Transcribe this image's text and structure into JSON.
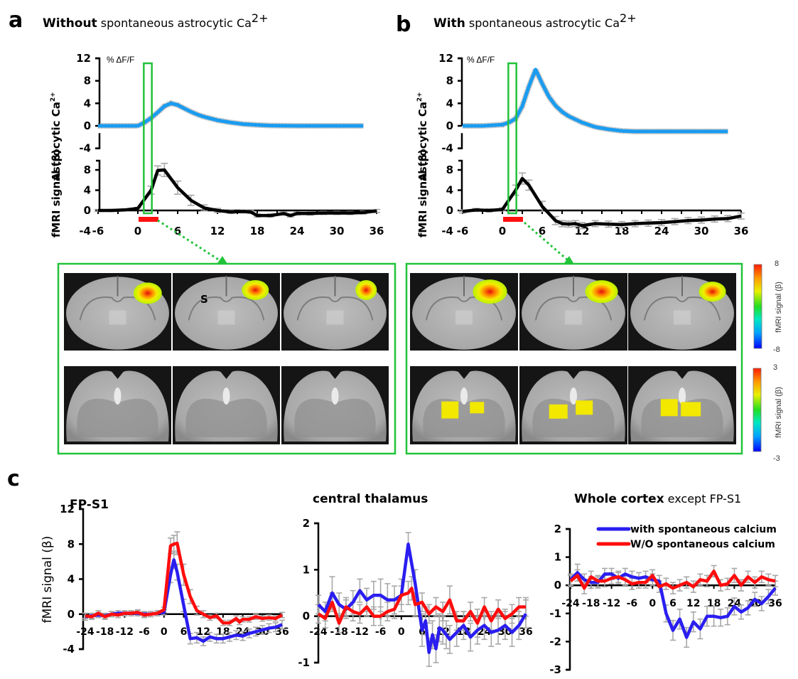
{
  "panels": {
    "a": {
      "letter": "a",
      "title_bold": "Without",
      "title_rest": " spontaneous astrocytic Ca",
      "title_sup": "2+",
      "unit_label": "% ΔF/F",
      "ca_ylabel": "Astrocytic Ca",
      "ca_ylabel_sup": "2+",
      "fmri_ylabel": "fMRI signal (β)"
    },
    "b": {
      "letter": "b",
      "title_bold": "With",
      "title_rest": " spontaneous astrocytic Ca",
      "title_sup": "2+",
      "unit_label": "% ΔF/F",
      "ca_ylabel": "Astrocytic Ca",
      "ca_ylabel_sup": "2+",
      "fmri_ylabel": "fMRI signal (β)"
    },
    "c": {
      "letter": "c",
      "fp_title": "FP-S1",
      "thal_title": "central thalamus",
      "ctx_title_bold": "Whole cortex",
      "ctx_title_rest": " except FP-S1",
      "ylabel": "fMRI signal (β)"
    }
  },
  "brain_maps": {
    "s_label": "S",
    "colorbar_top": {
      "label": "fMRI signal (β)",
      "max": "8",
      "min": "-8"
    },
    "colorbar_bottom": {
      "label": "fMRI signal (β)",
      "max": "3",
      "min": "-3"
    }
  },
  "colors": {
    "calcium": "#1a9cf0",
    "fmri": "#000000",
    "with_calcium": "#2a1ef0",
    "without_calcium": "#ff0d0d",
    "highlight_box": "#22c33a",
    "stimulus_bar": "#ff1010",
    "error_bar": "#a8a8a8"
  },
  "chart_data": [
    {
      "id": "a_calcium",
      "type": "line",
      "title": "Without spontaneous astrocytic Ca2+",
      "ylabel": "Astrocytic Ca2+ (% ΔF/F)",
      "ylim": [
        -4,
        12
      ],
      "yticks": [
        "12",
        "8",
        "4",
        "0",
        "-4"
      ],
      "series": [
        {
          "name": "Astrocytic Ca2+",
          "x": [
            -6,
            -3,
            0,
            1,
            2,
            3,
            4,
            5,
            6,
            7,
            8,
            9,
            10,
            12,
            14,
            16,
            18,
            20,
            24,
            28,
            32,
            34
          ],
          "y": [
            0,
            0,
            0,
            0.6,
            1.4,
            2.4,
            3.5,
            4.0,
            3.7,
            3.1,
            2.5,
            2.0,
            1.6,
            1.0,
            0.6,
            0.3,
            0.15,
            0.05,
            0,
            0,
            0,
            0
          ]
        }
      ]
    },
    {
      "id": "a_fmri",
      "type": "line",
      "xlabel": "",
      "ylabel": "fMRI signal (β)",
      "ylim": [
        -4,
        10
      ],
      "xlim": [
        -6,
        36
      ],
      "xticks": [
        "-6",
        "0",
        "6",
        "12",
        "18",
        "24",
        "30",
        "36"
      ],
      "yticks": [
        "8",
        "4",
        "0",
        "-4"
      ],
      "stimulus": [
        0,
        3
      ],
      "highlight_window": [
        1,
        2
      ],
      "series": [
        {
          "name": "fMRI",
          "x": [
            -6,
            -4,
            -2,
            0,
            2,
            3,
            4,
            6,
            8,
            10,
            12,
            14,
            16,
            17,
            18,
            20,
            22,
            23,
            24,
            26,
            28,
            30,
            32,
            34,
            36
          ],
          "y": [
            0,
            0,
            0.1,
            0.4,
            4.0,
            7.9,
            8.0,
            4.5,
            2.0,
            0.5,
            0,
            -0.3,
            -0.2,
            -0.3,
            -1.0,
            -1.0,
            -0.6,
            -1.0,
            -0.6,
            -0.6,
            -0.5,
            -0.5,
            -0.5,
            -0.4,
            -0.1
          ],
          "err": [
            0.2,
            0.2,
            0.2,
            0.2,
            0.8,
            0.9,
            1.3,
            1.3,
            1.0,
            0.6,
            0.4,
            0.3,
            0.3,
            0.3,
            0.3,
            0.3,
            0.3,
            0.3,
            0.3,
            0.3,
            0.3,
            0.3,
            0.3,
            0.3,
            0.3
          ]
        }
      ]
    },
    {
      "id": "b_calcium",
      "type": "line",
      "title": "With spontaneous astrocytic Ca2+",
      "ylabel": "Astrocytic Ca2+ (% ΔF/F)",
      "ylim": [
        -4,
        12
      ],
      "yticks": [
        "12",
        "8",
        "4",
        "0",
        "-4"
      ],
      "series": [
        {
          "name": "Astrocytic Ca2+",
          "x": [
            -6,
            -3,
            0,
            1,
            2,
            3,
            4,
            5,
            6,
            7,
            8,
            9,
            10,
            12,
            14,
            16,
            18,
            20,
            24,
            28,
            32,
            34
          ],
          "y": [
            0,
            0,
            0.2,
            0.6,
            1.3,
            3.5,
            7.0,
            10.0,
            7.5,
            5.2,
            3.6,
            2.5,
            1.7,
            0.6,
            -0.2,
            -0.6,
            -0.9,
            -1.0,
            -1.0,
            -1.0,
            -1.0,
            -1.0
          ]
        }
      ]
    },
    {
      "id": "b_fmri",
      "type": "line",
      "ylabel": "fMRI signal (β)",
      "ylim": [
        -4,
        10
      ],
      "xlim": [
        -6,
        36
      ],
      "xticks": [
        "-6",
        "0",
        "6",
        "12",
        "18",
        "24",
        "30",
        "36"
      ],
      "yticks": [
        "8",
        "4",
        "0",
        "-4"
      ],
      "stimulus": [
        0,
        3
      ],
      "highlight_window": [
        1,
        2
      ],
      "series": [
        {
          "name": "fMRI",
          "x": [
            -6,
            -4,
            -2,
            0,
            2,
            3,
            4,
            6,
            8,
            9,
            10,
            11,
            12,
            14,
            16,
            18,
            20,
            22,
            24,
            26,
            28,
            30,
            32,
            34,
            36
          ],
          "y": [
            -0.2,
            0.1,
            0,
            0.2,
            4.0,
            6.3,
            5.0,
            0.8,
            -2.0,
            -2.6,
            -2.7,
            -2.6,
            -3.0,
            -2.6,
            -2.7,
            -2.8,
            -2.6,
            -2.5,
            -2.4,
            -2.2,
            -2.0,
            -1.9,
            -1.7,
            -1.6,
            -1.1
          ],
          "err": [
            0.3,
            0.3,
            0.3,
            0.3,
            1.0,
            1.1,
            1.0,
            1.0,
            0.8,
            0.6,
            0.6,
            0.6,
            0.6,
            0.6,
            0.6,
            0.6,
            0.6,
            0.6,
            0.6,
            0.6,
            0.6,
            0.6,
            0.6,
            0.6,
            0.6
          ]
        }
      ]
    },
    {
      "id": "c_fp_s1",
      "type": "line",
      "title": "FP-S1",
      "ylabel": "fMRI signal (β)",
      "xlim": [
        -24,
        36
      ],
      "ylim": [
        -4,
        12
      ],
      "xticks": [
        "-24",
        "-18",
        "-12",
        "-6",
        "0",
        "6",
        "12",
        "18",
        "24",
        "30",
        "36"
      ],
      "yticks": [
        "12",
        "8",
        "4",
        "0",
        "-4"
      ],
      "series": [
        {
          "name": "with spontaneous calcium",
          "x": [
            -24,
            -22,
            -20,
            -18,
            -16,
            -14,
            -12,
            -10,
            -8,
            -6,
            -4,
            -2,
            0,
            2,
            3,
            4,
            6,
            8,
            10,
            12,
            14,
            16,
            18,
            20,
            22,
            24,
            26,
            28,
            30,
            32,
            34,
            36
          ],
          "y": [
            -0.3,
            -0.2,
            -0.1,
            -0.2,
            0,
            0.1,
            0.1,
            0.1,
            0.1,
            0,
            0,
            0.1,
            0.2,
            4.5,
            6.2,
            4.8,
            1.0,
            -2.8,
            -2.7,
            -3.1,
            -2.6,
            -2.8,
            -2.8,
            -2.6,
            -2.4,
            -2.5,
            -2.2,
            -2.0,
            -1.8,
            -1.6,
            -1.5,
            -1.2
          ],
          "err": [
            0.4,
            0.3,
            0.3,
            0.3,
            0.3,
            0.3,
            0.3,
            0.3,
            0.3,
            0.3,
            0.3,
            0.3,
            0.3,
            0.9,
            1.0,
            0.9,
            0.7,
            0.6,
            0.6,
            0.5,
            0.5,
            0.5,
            0.5,
            0.5,
            0.5,
            0.5,
            0.5,
            0.5,
            0.5,
            0.5,
            0.5,
            0.5
          ]
        },
        {
          "name": "W/O spontaneous calcium",
          "x": [
            -24,
            -22,
            -20,
            -18,
            -16,
            -14,
            -12,
            -10,
            -8,
            -6,
            -4,
            -2,
            0,
            2,
            3,
            4,
            6,
            8,
            10,
            12,
            14,
            16,
            18,
            20,
            22,
            23,
            24,
            26,
            28,
            30,
            32,
            34,
            36
          ],
          "y": [
            -0.2,
            -0.3,
            0.1,
            -0.3,
            0,
            -0.1,
            0.1,
            0.1,
            0.2,
            -0.1,
            0,
            0.1,
            0.5,
            7.8,
            8.0,
            8.1,
            4.5,
            2.0,
            0.4,
            0,
            -0.4,
            -0.2,
            -1.0,
            -1.0,
            -0.5,
            -0.9,
            -0.6,
            -0.6,
            -0.3,
            -0.5,
            -0.4,
            -0.5,
            -0.1
          ],
          "err": [
            0.3,
            0.3,
            0.3,
            0.3,
            0.3,
            0.3,
            0.3,
            0.3,
            0.3,
            0.3,
            0.3,
            0.3,
            0.3,
            0.9,
            1.0,
            1.3,
            1.2,
            0.8,
            0.5,
            0.4,
            0.3,
            0.3,
            0.3,
            0.3,
            0.3,
            0.3,
            0.3,
            0.3,
            0.3,
            0.3,
            0.3,
            0.3,
            0.3
          ]
        }
      ]
    },
    {
      "id": "c_thalamus",
      "type": "line",
      "title": "central thalamus",
      "xlim": [
        -24,
        36
      ],
      "ylim": [
        -1,
        2
      ],
      "xticks": [
        "-24",
        "-18",
        "-12",
        "-6",
        "0",
        "6",
        "12",
        "18",
        "24",
        "30",
        "36"
      ],
      "yticks": [
        "2",
        "1",
        "0",
        "-1"
      ],
      "series": [
        {
          "name": "with spontaneous calcium",
          "x": [
            -24,
            -22,
            -20,
            -18,
            -16,
            -14,
            -12,
            -10,
            -8,
            -6,
            -4,
            -2,
            0,
            2,
            4,
            6,
            7,
            8,
            9,
            10,
            11,
            12,
            13,
            14,
            16,
            18,
            20,
            22,
            24,
            26,
            28,
            30,
            32,
            34,
            36
          ],
          "y": [
            0.25,
            0.1,
            0.5,
            0.25,
            0.15,
            0.3,
            0.55,
            0.35,
            0.45,
            0.45,
            0.35,
            0.35,
            0.45,
            1.55,
            0.7,
            -0.3,
            -0.1,
            -0.78,
            -0.4,
            -0.7,
            -0.25,
            -0.3,
            -0.4,
            -0.5,
            -0.35,
            -0.2,
            -0.45,
            -0.3,
            -0.2,
            -0.35,
            -0.3,
            -0.2,
            -0.35,
            -0.2,
            0.05
          ],
          "err": [
            0.2,
            0.2,
            0.35,
            0.25,
            0.2,
            0.25,
            0.25,
            0.25,
            0.3,
            0.35,
            0.35,
            0.3,
            0.35,
            0.25,
            0.3,
            0.35,
            0.3,
            0.3,
            0.3,
            0.3,
            0.3,
            0.3,
            0.3,
            0.3,
            0.3,
            0.3,
            0.3,
            0.3,
            0.3,
            0.3,
            0.3,
            0.3,
            0.3,
            0.3,
            0.3
          ]
        },
        {
          "name": "W/O spontaneous calcium",
          "x": [
            -24,
            -22,
            -20,
            -18,
            -16,
            -14,
            -12,
            -10,
            -8,
            -6,
            -4,
            -2,
            0,
            2,
            3,
            4,
            6,
            8,
            10,
            12,
            14,
            16,
            18,
            20,
            22,
            24,
            26,
            28,
            30,
            32,
            34,
            36
          ],
          "y": [
            0.05,
            -0.05,
            0.3,
            -0.15,
            0.2,
            0.1,
            0.05,
            0.2,
            0.0,
            0.0,
            0.1,
            0.15,
            0.45,
            0.5,
            0.6,
            0.25,
            0.3,
            0.05,
            0.2,
            0.1,
            0.35,
            -0.1,
            -0.1,
            0.1,
            -0.15,
            0.2,
            -0.1,
            0.15,
            -0.05,
            0.05,
            0.2,
            0.2
          ],
          "err": [
            0.2,
            0.2,
            0.2,
            0.2,
            0.2,
            0.2,
            0.2,
            0.2,
            0.2,
            0.2,
            0.2,
            0.2,
            0.2,
            0.25,
            0.25,
            0.25,
            0.2,
            0.2,
            0.2,
            0.2,
            0.3,
            0.2,
            0.2,
            0.2,
            0.3,
            0.2,
            0.2,
            0.2,
            0.2,
            0.2,
            0.2,
            0.2
          ]
        }
      ]
    },
    {
      "id": "c_whole_cortex",
      "type": "line",
      "title": "Whole cortex except FP-S1",
      "xlim": [
        -24,
        36
      ],
      "ylim": [
        -3,
        2
      ],
      "xticks": [
        "-24",
        "-18",
        "-12",
        "-6",
        "0",
        "6",
        "12",
        "18",
        "24",
        "30",
        "36"
      ],
      "yticks": [
        "2",
        "1",
        "0",
        "-1",
        "-2",
        "-3"
      ],
      "legend": {
        "position": "top-right",
        "entries": [
          "with spontaneous calcium",
          "W/O spontaneous calcium"
        ]
      },
      "series": [
        {
          "name": "with spontaneous calcium",
          "x": [
            -24,
            -22,
            -20,
            -18,
            -16,
            -14,
            -12,
            -10,
            -8,
            -6,
            -4,
            -2,
            0,
            2,
            4,
            6,
            8,
            10,
            12,
            14,
            16,
            18,
            20,
            22,
            24,
            26,
            28,
            30,
            32,
            34,
            36
          ],
          "y": [
            0.2,
            0.45,
            0.2,
            0.1,
            0.1,
            0.4,
            0.4,
            0.25,
            0.4,
            0.3,
            0.25,
            0.3,
            0.2,
            0.15,
            -1.0,
            -1.6,
            -1.2,
            -1.85,
            -1.3,
            -1.55,
            -1.1,
            -1.1,
            -1.15,
            -1.1,
            -0.75,
            -0.95,
            -0.8,
            -0.5,
            -0.65,
            -0.4,
            -0.1
          ],
          "err": [
            0.2,
            0.3,
            0.2,
            0.2,
            0.2,
            0.2,
            0.2,
            0.2,
            0.2,
            0.2,
            0.2,
            0.2,
            0.2,
            0.2,
            0.3,
            0.35,
            0.35,
            0.35,
            0.35,
            0.35,
            0.35,
            0.35,
            0.3,
            0.3,
            0.3,
            0.25,
            0.25,
            0.25,
            0.25,
            0.25,
            0.25
          ]
        },
        {
          "name": "W/O spontaneous calcium",
          "x": [
            -24,
            -22,
            -20,
            -18,
            -16,
            -14,
            -12,
            -10,
            -8,
            -6,
            -4,
            -2,
            0,
            2,
            4,
            6,
            8,
            10,
            12,
            14,
            16,
            18,
            20,
            22,
            24,
            26,
            28,
            30,
            32,
            34,
            36
          ],
          "y": [
            0.15,
            0.35,
            -0.1,
            0.3,
            0.15,
            0.15,
            0.25,
            0.3,
            0.2,
            0.05,
            0.1,
            0.1,
            0.35,
            -0.05,
            0.05,
            -0.1,
            0.0,
            0.1,
            -0.05,
            0.2,
            0.15,
            0.5,
            0.0,
            0.05,
            0.35,
            0.0,
            0.3,
            0.1,
            0.3,
            0.2,
            0.15
          ],
          "err": [
            0.2,
            0.2,
            0.2,
            0.2,
            0.2,
            0.2,
            0.2,
            0.2,
            0.2,
            0.2,
            0.2,
            0.2,
            0.2,
            0.2,
            0.2,
            0.2,
            0.2,
            0.2,
            0.2,
            0.2,
            0.2,
            0.2,
            0.2,
            0.2,
            0.25,
            0.2,
            0.2,
            0.2,
            0.2,
            0.2,
            0.2
          ]
        }
      ]
    }
  ]
}
